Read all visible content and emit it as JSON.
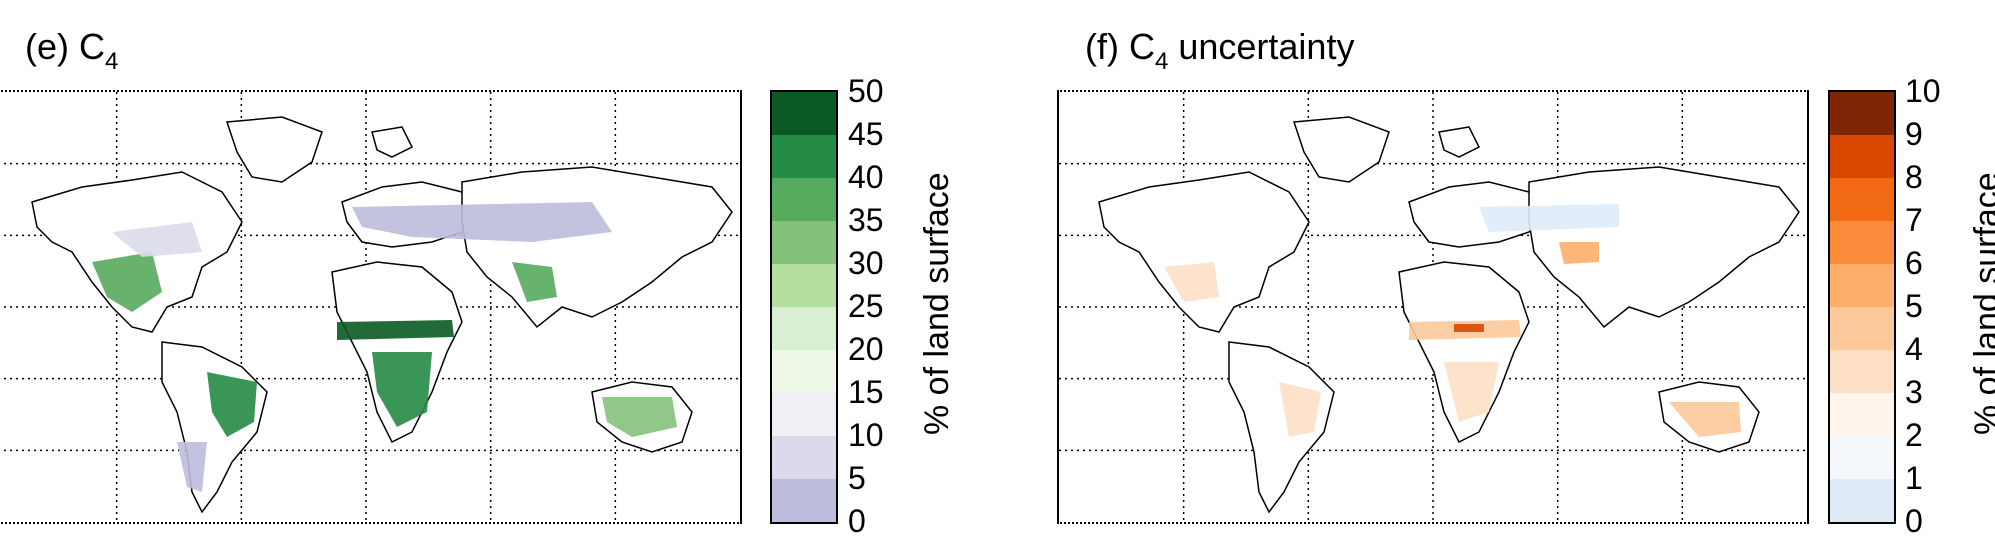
{
  "panels": [
    {
      "title_prefix": "(e) C",
      "title_sub": "4",
      "title_suffix": "",
      "colorbar": {
        "ticks": [
          "50",
          "45",
          "40",
          "35",
          "30",
          "25",
          "20",
          "15",
          "10",
          "5",
          "0"
        ],
        "colors_top_to_bottom": [
          "#0b5a24",
          "#238b45",
          "#57ab5e",
          "#84c27b",
          "#b4dea0",
          "#d9efd2",
          "#eef8e8",
          "#f2f0f6",
          "#dadaeb",
          "#bcbddc"
        ],
        "label": "% of land surface"
      },
      "accent_colors": [
        "#0b5a24",
        "#238b45",
        "#57ab5e",
        "#bcbddc"
      ]
    },
    {
      "title_prefix": "(f) C",
      "title_sub": "4",
      "title_suffix": " uncertainty",
      "colorbar": {
        "ticks": [
          "10",
          "9",
          "8",
          "7",
          "6",
          "5",
          "4",
          "3",
          "2",
          "1",
          "0"
        ],
        "colors_top_to_bottom": [
          "#7f2704",
          "#d94801",
          "#f16913",
          "#fd8d3c",
          "#fdae6b",
          "#fdc89a",
          "#fde0c5",
          "#fff5eb",
          "#f4f8fc",
          "#deebf7"
        ],
        "label": "% of land surface"
      },
      "accent_colors": [
        "#fdae6b",
        "#f16913",
        "#d94801",
        "#deebf7"
      ]
    }
  ]
}
